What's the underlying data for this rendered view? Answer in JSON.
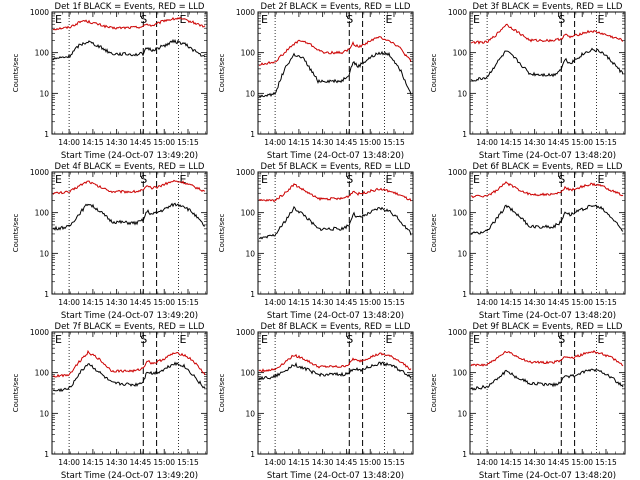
{
  "chart_data": [
    {
      "type": "line",
      "title": "Det 1f BLACK = Events, RED = LLD",
      "xlabel": "Start Time (24-Oct-07 13:49:20)",
      "ylabel": "Counts/sec",
      "y_scale": "log",
      "ylim": [
        1,
        1000
      ],
      "xlim": [
        13.82,
        15.45
      ],
      "x_tick_labels": [
        "14:00",
        "14:15",
        "14:30",
        "14:45",
        "15:00",
        "15:15"
      ],
      "y_tick_labels": [
        "1",
        "10",
        "100",
        "1000"
      ],
      "marker_labels": [
        "E",
        "S",
        "E"
      ],
      "grid": false,
      "series": [
        {
          "color": "#cc0000",
          "x": [
            13.83,
            14.0,
            14.15,
            14.25,
            14.45,
            14.7,
            14.78,
            14.82,
            14.87,
            14.92,
            15.0,
            15.15,
            15.3,
            15.43
          ],
          "y": [
            380,
            420,
            620,
            540,
            400,
            420,
            440,
            510,
            460,
            500,
            620,
            700,
            560,
            430
          ]
        },
        {
          "color": "#000000",
          "x": [
            13.83,
            14.0,
            14.1,
            14.2,
            14.3,
            14.45,
            14.7,
            14.78,
            14.82,
            14.87,
            14.92,
            15.0,
            15.1,
            15.2,
            15.3,
            15.43
          ],
          "y": [
            70,
            80,
            150,
            190,
            150,
            95,
            90,
            95,
            130,
            115,
            125,
            150,
            190,
            170,
            120,
            75
          ]
        }
      ]
    },
    {
      "type": "line",
      "title": "Det 2f BLACK = Events, RED = LLD",
      "xlabel": "Start Time (24-Oct-07 13:48:20)",
      "ylabel": "Counts/sec",
      "y_scale": "log",
      "ylim": [
        1,
        1000
      ],
      "xlim": [
        13.82,
        15.45
      ],
      "x_tick_labels": [
        "14:00",
        "14:15",
        "14:30",
        "14:45",
        "15:00",
        "15:15"
      ],
      "y_tick_labels": [
        "1",
        "10",
        "100",
        "1000"
      ],
      "marker_labels": [
        "E",
        "S",
        "E"
      ],
      "grid": false,
      "series": [
        {
          "color": "#cc0000",
          "x": [
            13.83,
            14.0,
            14.15,
            14.25,
            14.35,
            14.5,
            14.7,
            14.78,
            14.82,
            14.87,
            14.92,
            15.0,
            15.1,
            15.2,
            15.3,
            15.43
          ],
          "y": [
            50,
            60,
            130,
            200,
            170,
            100,
            100,
            120,
            170,
            140,
            150,
            200,
            240,
            200,
            140,
            60
          ]
        },
        {
          "color": "#000000",
          "x": [
            13.83,
            14.0,
            14.1,
            14.2,
            14.3,
            14.45,
            14.7,
            14.78,
            14.82,
            14.87,
            14.92,
            15.0,
            15.1,
            15.2,
            15.3,
            15.43
          ],
          "y": [
            8,
            10,
            40,
            90,
            70,
            20,
            20,
            30,
            60,
            45,
            55,
            75,
            100,
            90,
            45,
            10
          ]
        }
      ]
    },
    {
      "type": "line",
      "title": "Det 3f BLACK = Events, RED = LLD",
      "xlabel": "Start Time (24-Oct-07 13:48:20)",
      "ylabel": "Counts/sec",
      "y_scale": "log",
      "ylim": [
        1,
        1000
      ],
      "xlim": [
        13.82,
        15.45
      ],
      "x_tick_labels": [
        "14:00",
        "14:15",
        "14:30",
        "14:45",
        "15:00",
        "15:15"
      ],
      "y_tick_labels": [
        "1",
        "10",
        "100",
        "1000"
      ],
      "marker_labels": [
        "E",
        "S",
        "E"
      ],
      "grid": false,
      "series": [
        {
          "color": "#cc0000",
          "x": [
            13.83,
            14.0,
            14.1,
            14.2,
            14.3,
            14.45,
            14.7,
            14.78,
            14.82,
            14.87,
            14.92,
            15.0,
            15.1,
            15.2,
            15.3,
            15.43
          ],
          "y": [
            180,
            180,
            280,
            500,
            350,
            200,
            200,
            220,
            280,
            240,
            260,
            300,
            340,
            300,
            250,
            200
          ]
        },
        {
          "color": "#000000",
          "x": [
            13.83,
            14.0,
            14.1,
            14.2,
            14.3,
            14.45,
            14.7,
            14.78,
            14.82,
            14.87,
            14.92,
            15.0,
            15.1,
            15.2,
            15.3,
            15.43
          ],
          "y": [
            20,
            25,
            55,
            110,
            70,
            30,
            28,
            40,
            70,
            55,
            65,
            90,
            120,
            105,
            65,
            30
          ]
        }
      ]
    },
    {
      "type": "line",
      "title": "Det 4f BLACK = Events, RED = LLD",
      "xlabel": "Start Time (24-Oct-07 13:49:20)",
      "ylabel": "Counts/sec",
      "y_scale": "log",
      "ylim": [
        1,
        1000
      ],
      "xlim": [
        13.82,
        15.45
      ],
      "x_tick_labels": [
        "14:00",
        "14:15",
        "14:30",
        "14:45",
        "15:00",
        "15:15"
      ],
      "y_tick_labels": [
        "1",
        "10",
        "100",
        "1000"
      ],
      "marker_labels": [
        "E",
        "S",
        "E"
      ],
      "grid": false,
      "series": [
        {
          "color": "#cc0000",
          "x": [
            13.83,
            14.0,
            14.1,
            14.2,
            14.3,
            14.45,
            14.7,
            14.78,
            14.82,
            14.87,
            14.92,
            15.0,
            15.1,
            15.2,
            15.3,
            15.43
          ],
          "y": [
            300,
            320,
            450,
            600,
            450,
            330,
            330,
            360,
            440,
            400,
            420,
            500,
            600,
            560,
            450,
            330
          ]
        },
        {
          "color": "#000000",
          "x": [
            13.83,
            14.0,
            14.1,
            14.2,
            14.3,
            14.45,
            14.7,
            14.78,
            14.82,
            14.87,
            14.92,
            15.0,
            15.1,
            15.2,
            15.3,
            15.43
          ],
          "y": [
            40,
            45,
            90,
            170,
            120,
            60,
            55,
            65,
            110,
            90,
            100,
            120,
            160,
            150,
            100,
            45
          ]
        }
      ]
    },
    {
      "type": "line",
      "title": "Det 5f BLACK = Events, RED = LLD",
      "xlabel": "Start Time (24-Oct-07 13:48:20)",
      "ylabel": "Counts/sec",
      "y_scale": "log",
      "ylim": [
        1,
        1000
      ],
      "xlim": [
        13.82,
        15.45
      ],
      "x_tick_labels": [
        "14:00",
        "14:15",
        "14:30",
        "14:45",
        "15:00",
        "15:15"
      ],
      "y_tick_labels": [
        "1",
        "10",
        "100",
        "1000"
      ],
      "marker_labels": [
        "E",
        "S",
        "E"
      ],
      "grid": false,
      "series": [
        {
          "color": "#cc0000",
          "x": [
            13.83,
            14.0,
            14.1,
            14.2,
            14.3,
            14.45,
            14.7,
            14.78,
            14.82,
            14.87,
            14.92,
            15.0,
            15.1,
            15.2,
            15.3,
            15.43
          ],
          "y": [
            200,
            200,
            300,
            500,
            360,
            220,
            220,
            260,
            340,
            290,
            300,
            340,
            380,
            340,
            280,
            200
          ]
        },
        {
          "color": "#000000",
          "x": [
            13.83,
            14.0,
            14.1,
            14.2,
            14.3,
            14.45,
            14.7,
            14.78,
            14.82,
            14.87,
            14.92,
            15.0,
            15.1,
            15.2,
            15.3,
            15.43
          ],
          "y": [
            22,
            28,
            60,
            130,
            90,
            40,
            40,
            50,
            95,
            75,
            80,
            100,
            130,
            110,
            70,
            30
          ]
        }
      ]
    },
    {
      "type": "line",
      "title": "Det 6f BLACK = Events, RED = LLD",
      "xlabel": "Start Time (24-Oct-07 13:48:20)",
      "ylabel": "Counts/sec",
      "y_scale": "log",
      "ylim": [
        1,
        1000
      ],
      "xlim": [
        13.82,
        15.45
      ],
      "x_tick_labels": [
        "14:00",
        "14:15",
        "14:30",
        "14:45",
        "15:00",
        "15:15"
      ],
      "y_tick_labels": [
        "1",
        "10",
        "100",
        "1000"
      ],
      "marker_labels": [
        "E",
        "S",
        "E"
      ],
      "grid": false,
      "series": [
        {
          "color": "#cc0000",
          "x": [
            13.83,
            14.0,
            14.1,
            14.2,
            14.3,
            14.45,
            14.7,
            14.78,
            14.82,
            14.87,
            14.92,
            15.0,
            15.1,
            15.2,
            15.3,
            15.43
          ],
          "y": [
            250,
            260,
            350,
            550,
            400,
            280,
            280,
            320,
            420,
            360,
            380,
            440,
            500,
            460,
            360,
            260
          ]
        },
        {
          "color": "#000000",
          "x": [
            13.83,
            14.0,
            14.1,
            14.2,
            14.3,
            14.45,
            14.7,
            14.78,
            14.82,
            14.87,
            14.92,
            15.0,
            15.1,
            15.2,
            15.3,
            15.43
          ],
          "y": [
            30,
            35,
            70,
            150,
            100,
            45,
            45,
            60,
            110,
            90,
            100,
            120,
            150,
            130,
            80,
            35
          ]
        }
      ]
    },
    {
      "type": "line",
      "title": "Det 7f BLACK = Events, RED = LLD",
      "xlabel": "Start Time (24-Oct-07 13:49:20)",
      "ylabel": "Counts/sec",
      "y_scale": "log",
      "ylim": [
        1,
        1000
      ],
      "xlim": [
        13.82,
        15.45
      ],
      "x_tick_labels": [
        "14:00",
        "14:15",
        "14:30",
        "14:45",
        "15:00",
        "15:15"
      ],
      "y_tick_labels": [
        "1",
        "10",
        "100",
        "1000"
      ],
      "marker_labels": [
        "E",
        "S",
        "E"
      ],
      "grid": false,
      "series": [
        {
          "color": "#cc0000",
          "x": [
            13.83,
            14.0,
            14.1,
            14.2,
            14.3,
            14.45,
            14.7,
            14.78,
            14.82,
            14.87,
            14.92,
            15.0,
            15.1,
            15.2,
            15.3,
            15.43
          ],
          "y": [
            80,
            90,
            180,
            320,
            230,
            110,
            110,
            130,
            200,
            170,
            180,
            220,
            300,
            280,
            200,
            90
          ]
        },
        {
          "color": "#000000",
          "x": [
            13.83,
            14.0,
            14.1,
            14.2,
            14.3,
            14.45,
            14.7,
            14.78,
            14.82,
            14.87,
            14.92,
            15.0,
            15.1,
            15.2,
            15.3,
            15.43
          ],
          "y": [
            35,
            40,
            90,
            170,
            110,
            55,
            50,
            60,
            110,
            95,
            100,
            120,
            170,
            150,
            90,
            40
          ]
        }
      ]
    },
    {
      "type": "line",
      "title": "Det 8f BLACK = Events, RED = LLD",
      "xlabel": "Start Time (24-Oct-07 13:48:20)",
      "ylabel": "Counts/sec",
      "y_scale": "log",
      "ylim": [
        1,
        1000
      ],
      "xlim": [
        13.82,
        15.45
      ],
      "x_tick_labels": [
        "14:00",
        "14:15",
        "14:30",
        "14:45",
        "15:00",
        "15:15"
      ],
      "y_tick_labels": [
        "1",
        "10",
        "100",
        "1000"
      ],
      "marker_labels": [
        "E",
        "S",
        "E"
      ],
      "grid": false,
      "series": [
        {
          "color": "#cc0000",
          "x": [
            13.83,
            14.0,
            14.1,
            14.2,
            14.3,
            14.45,
            14.7,
            14.78,
            14.82,
            14.87,
            14.92,
            15.0,
            15.1,
            15.2,
            15.3,
            15.43
          ],
          "y": [
            110,
            120,
            180,
            270,
            220,
            140,
            140,
            160,
            220,
            190,
            200,
            240,
            290,
            260,
            200,
            120
          ]
        },
        {
          "color": "#000000",
          "x": [
            13.83,
            14.0,
            14.1,
            14.2,
            14.3,
            14.45,
            14.7,
            14.78,
            14.82,
            14.87,
            14.92,
            15.0,
            15.1,
            15.2,
            15.3,
            15.43
          ],
          "y": [
            70,
            80,
            110,
            160,
            130,
            90,
            90,
            95,
            130,
            115,
            120,
            140,
            170,
            160,
            120,
            80
          ]
        }
      ]
    },
    {
      "type": "line",
      "title": "Det 9f BLACK = Events, RED = LLD",
      "xlabel": "Start Time (24-Oct-07 13:48:20)",
      "ylabel": "Counts/sec",
      "y_scale": "log",
      "ylim": [
        1,
        1000
      ],
      "xlim": [
        13.82,
        15.45
      ],
      "x_tick_labels": [
        "14:00",
        "14:15",
        "14:30",
        "14:45",
        "15:00",
        "15:15"
      ],
      "y_tick_labels": [
        "1",
        "10",
        "100",
        "1000"
      ],
      "marker_labels": [
        "E",
        "S",
        "E"
      ],
      "grid": false,
      "series": [
        {
          "color": "#cc0000",
          "x": [
            13.83,
            14.0,
            14.1,
            14.2,
            14.3,
            14.45,
            14.7,
            14.78,
            14.82,
            14.87,
            14.92,
            15.0,
            15.1,
            15.2,
            15.3,
            15.43
          ],
          "y": [
            150,
            160,
            220,
            330,
            260,
            180,
            180,
            200,
            260,
            230,
            240,
            280,
            330,
            300,
            240,
            150
          ]
        },
        {
          "color": "#000000",
          "x": [
            13.83,
            14.0,
            14.1,
            14.2,
            14.3,
            14.45,
            14.7,
            14.78,
            14.82,
            14.87,
            14.92,
            15.0,
            15.1,
            15.2,
            15.3,
            15.43
          ],
          "y": [
            40,
            45,
            70,
            110,
            80,
            55,
            50,
            60,
            90,
            80,
            85,
            100,
            120,
            110,
            80,
            45
          ]
        }
      ]
    }
  ],
  "markers": {
    "dotted_x": [
      14.0,
      15.15
    ],
    "dashed_x": [
      14.78,
      14.92
    ]
  },
  "x_tick_values": [
    14.0,
    14.25,
    14.5,
    14.75,
    15.0,
    15.25
  ]
}
